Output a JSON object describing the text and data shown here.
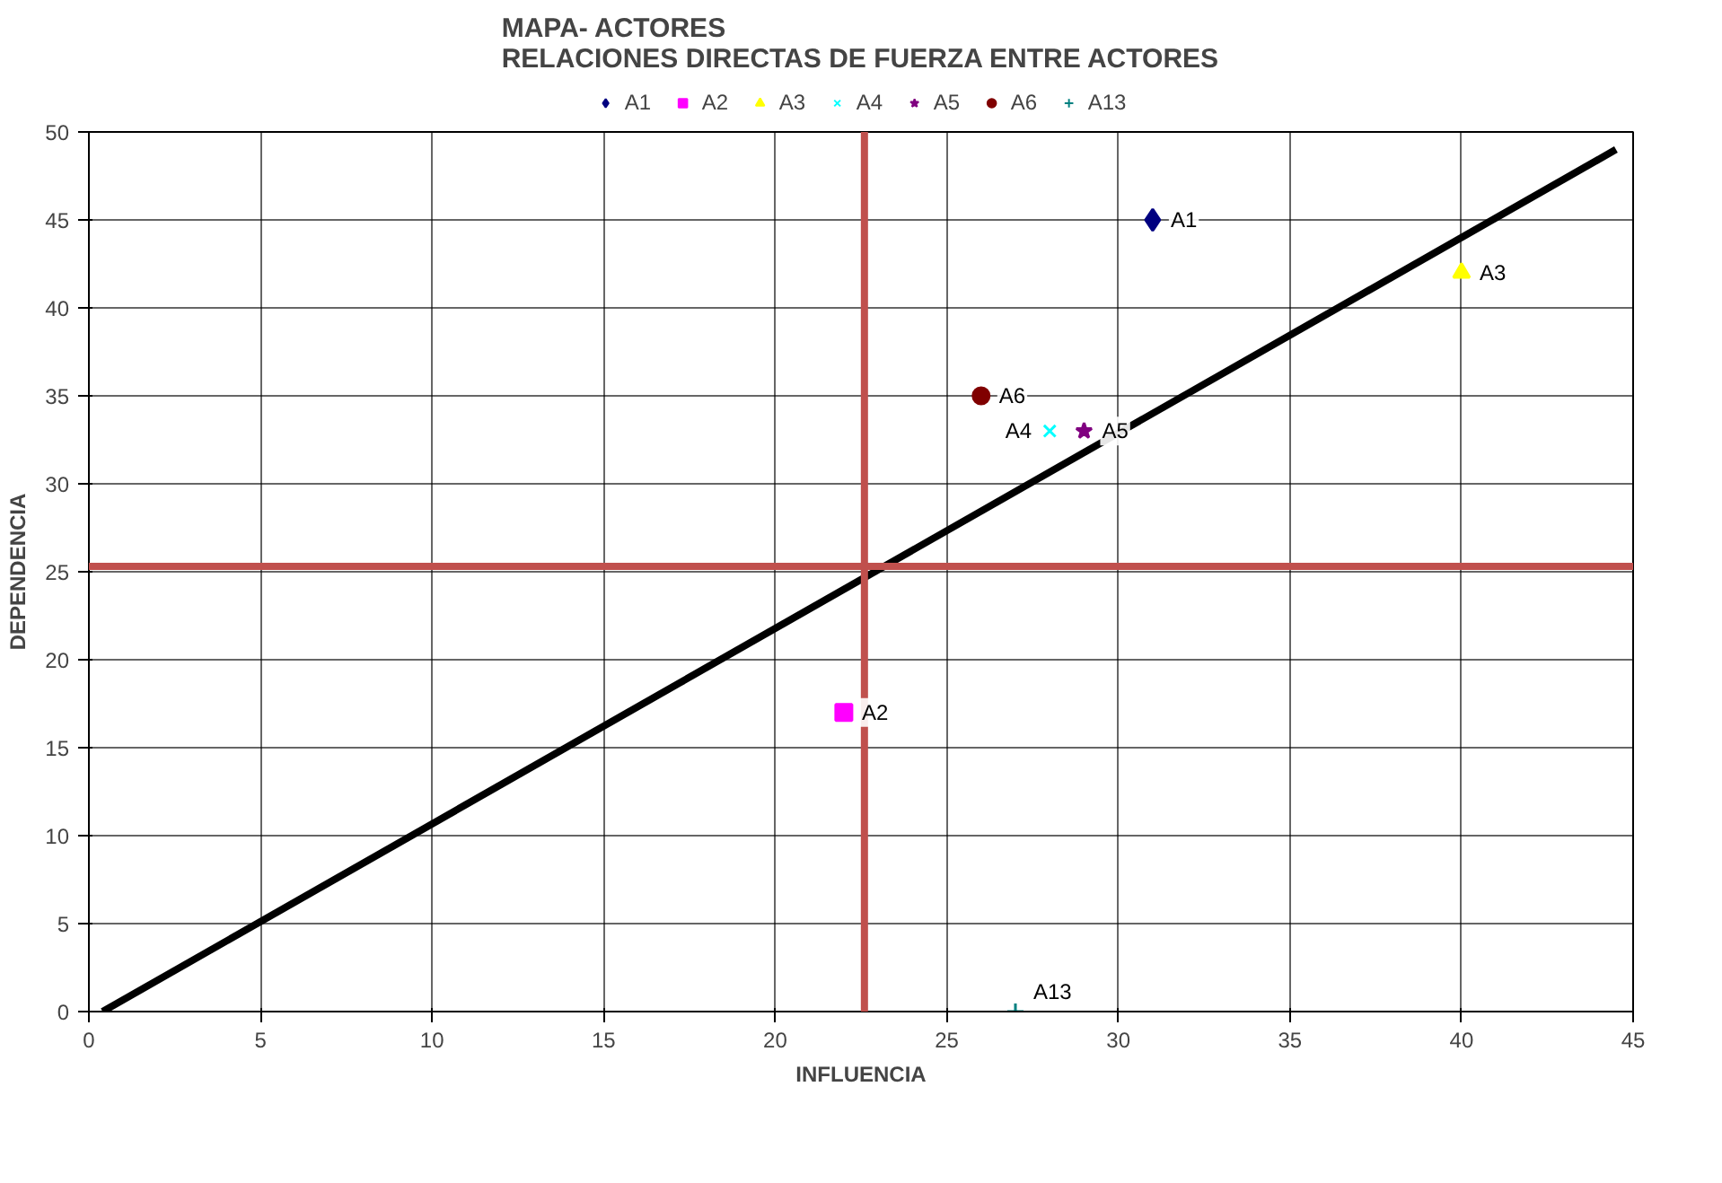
{
  "chart_data": {
    "type": "scatter",
    "title": "MAPA- ACTORES\nRELACIONES DIRECTAS DE FUERZA ENTRE ACTORES",
    "xlabel": "INFLUENCIA",
    "ylabel": "DEPENDENCIA",
    "xlim": [
      0,
      45
    ],
    "ylim": [
      0,
      50
    ],
    "xticks": [
      0,
      5,
      10,
      15,
      20,
      25,
      30,
      35,
      40,
      45
    ],
    "yticks": [
      0,
      5,
      10,
      15,
      20,
      25,
      30,
      35,
      40,
      45,
      50
    ],
    "grid": true,
    "legend": "top",
    "series": [
      {
        "name": "A1",
        "color": "#000080",
        "marker": "diamond",
        "x": [
          31
        ],
        "values": [
          45
        ]
      },
      {
        "name": "A2",
        "color": "#ff00ff",
        "marker": "square",
        "x": [
          22
        ],
        "values": [
          17
        ]
      },
      {
        "name": "A3",
        "color": "#ffff00",
        "marker": "triangle",
        "x": [
          40
        ],
        "values": [
          42
        ]
      },
      {
        "name": "A4",
        "color": "#00ffff",
        "marker": "x",
        "x": [
          28
        ],
        "values": [
          33
        ]
      },
      {
        "name": "A5",
        "color": "#800080",
        "marker": "star",
        "x": [
          29
        ],
        "values": [
          33
        ]
      },
      {
        "name": "A6",
        "color": "#800000",
        "marker": "circle",
        "x": [
          26
        ],
        "values": [
          35
        ]
      },
      {
        "name": "A13",
        "color": "#008080",
        "marker": "cross",
        "x": [
          27
        ],
        "values": [
          0
        ]
      },
      {
        "type": "line",
        "color": "#000000",
        "marker": "none",
        "x": [
          0.4,
          44.5
        ],
        "values": [
          0,
          49
        ]
      }
    ],
    "ref_lines": [
      {
        "axis": "x",
        "value": 22.6,
        "color": "#c0504d"
      },
      {
        "axis": "y",
        "value": 25.3,
        "color": "#c0504d"
      }
    ]
  }
}
